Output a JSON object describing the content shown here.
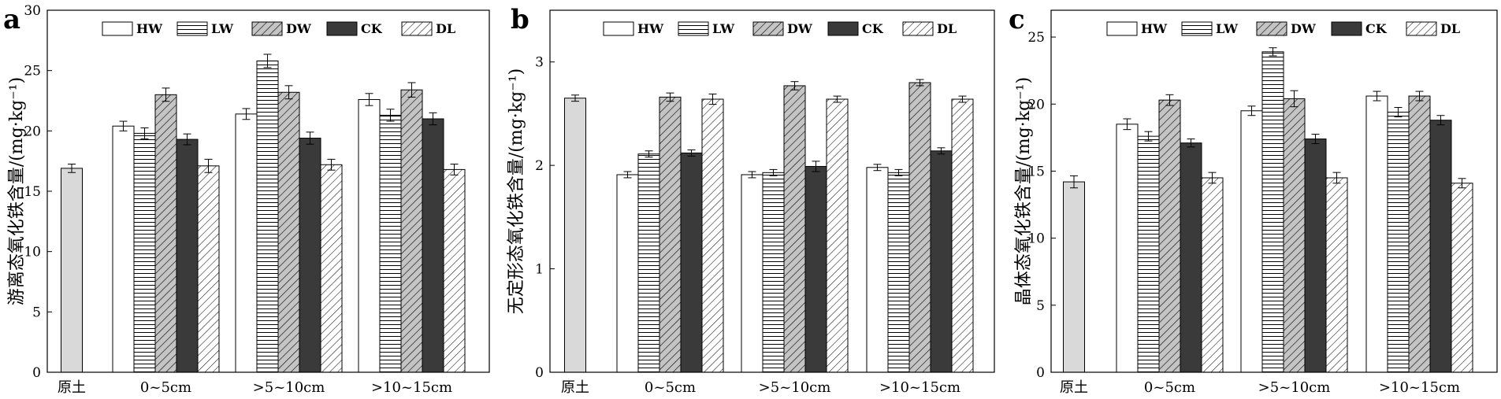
{
  "chart_data": [
    {
      "panel": "a",
      "type": "bar",
      "ylabel": "游离态氧化铁含量/(mg·kg⁻¹)",
      "ylim": [
        0,
        30
      ],
      "yticks": [
        0,
        5,
        10,
        15,
        20,
        25,
        30
      ],
      "grid": false,
      "legend_position": "top",
      "categories": [
        "原土",
        "0~5cm",
        ">5~10cm",
        ">10~15cm"
      ],
      "baseline": {
        "category": "原土",
        "value": 16.9,
        "error": 0.35
      },
      "series": [
        {
          "name": "HW",
          "values": [
            null,
            20.4,
            21.4,
            22.6
          ],
          "errors": [
            null,
            0.4,
            0.45,
            0.5
          ]
        },
        {
          "name": "LW",
          "values": [
            null,
            19.8,
            25.8,
            21.3
          ],
          "errors": [
            null,
            0.45,
            0.55,
            0.5
          ]
        },
        {
          "name": "DW",
          "values": [
            null,
            23.0,
            23.2,
            23.4
          ],
          "errors": [
            null,
            0.55,
            0.55,
            0.6
          ]
        },
        {
          "name": "CK",
          "values": [
            null,
            19.3,
            19.4,
            21.0
          ],
          "errors": [
            null,
            0.45,
            0.5,
            0.5
          ]
        },
        {
          "name": "DL",
          "values": [
            null,
            17.1,
            17.2,
            16.8
          ],
          "errors": [
            null,
            0.55,
            0.45,
            0.45
          ]
        }
      ]
    },
    {
      "panel": "b",
      "type": "bar",
      "ylabel": "无定形态氧化铁含量/(mg·kg⁻¹)",
      "ylim": [
        0,
        3.5
      ],
      "yticks": [
        0,
        1,
        2,
        3
      ],
      "grid": false,
      "legend_position": "top",
      "categories": [
        "原土",
        "0~5cm",
        ">5~10cm",
        ">10~15cm"
      ],
      "baseline": {
        "category": "原土",
        "value": 2.65,
        "error": 0.03
      },
      "series": [
        {
          "name": "HW",
          "values": [
            null,
            1.91,
            1.91,
            1.98
          ],
          "errors": [
            null,
            0.03,
            0.03,
            0.03
          ]
        },
        {
          "name": "LW",
          "values": [
            null,
            2.11,
            1.93,
            1.93
          ],
          "errors": [
            null,
            0.03,
            0.03,
            0.03
          ]
        },
        {
          "name": "DW",
          "values": [
            null,
            2.66,
            2.77,
            2.8
          ],
          "errors": [
            null,
            0.04,
            0.04,
            0.03
          ]
        },
        {
          "name": "CK",
          "values": [
            null,
            2.12,
            1.99,
            2.14
          ],
          "errors": [
            null,
            0.03,
            0.05,
            0.03
          ]
        },
        {
          "name": "DL",
          "values": [
            null,
            2.64,
            2.64,
            2.64
          ],
          "errors": [
            null,
            0.05,
            0.03,
            0.03
          ]
        }
      ]
    },
    {
      "panel": "c",
      "type": "bar",
      "ylabel": "晶体态氧化铁含量/(mg·kg⁻¹)",
      "ylim": [
        0,
        27
      ],
      "yticks": [
        0,
        5,
        10,
        15,
        20,
        25
      ],
      "grid": false,
      "legend_position": "top",
      "categories": [
        "原土",
        "0~5cm",
        ">5~10cm",
        ">10~15cm"
      ],
      "baseline": {
        "category": "原土",
        "value": 14.2,
        "error": 0.45
      },
      "series": [
        {
          "name": "HW",
          "values": [
            null,
            18.5,
            19.5,
            20.6
          ],
          "errors": [
            null,
            0.4,
            0.35,
            0.35
          ]
        },
        {
          "name": "LW",
          "values": [
            null,
            17.6,
            23.9,
            19.4
          ],
          "errors": [
            null,
            0.35,
            0.3,
            0.35
          ]
        },
        {
          "name": "DW",
          "values": [
            null,
            20.3,
            20.4,
            20.6
          ],
          "errors": [
            null,
            0.4,
            0.6,
            0.35
          ]
        },
        {
          "name": "CK",
          "values": [
            null,
            17.1,
            17.4,
            18.8
          ],
          "errors": [
            null,
            0.3,
            0.35,
            0.35
          ]
        },
        {
          "name": "DL",
          "values": [
            null,
            14.5,
            14.5,
            14.1
          ],
          "errors": [
            null,
            0.4,
            0.4,
            0.35
          ]
        }
      ]
    }
  ],
  "styles": {
    "baseline_fill": "#d9d9d9",
    "HW": {
      "pattern": "solid",
      "fill": "#ffffff"
    },
    "LW": {
      "pattern": "horizontal-lines",
      "fill": "#ffffff"
    },
    "DW": {
      "pattern": "diagonal-lines",
      "fill": "#c4c4c4"
    },
    "CK": {
      "pattern": "solid",
      "fill": "#3a3a3a"
    },
    "DL": {
      "pattern": "diagonal-lines",
      "fill": "#ffffff"
    }
  }
}
